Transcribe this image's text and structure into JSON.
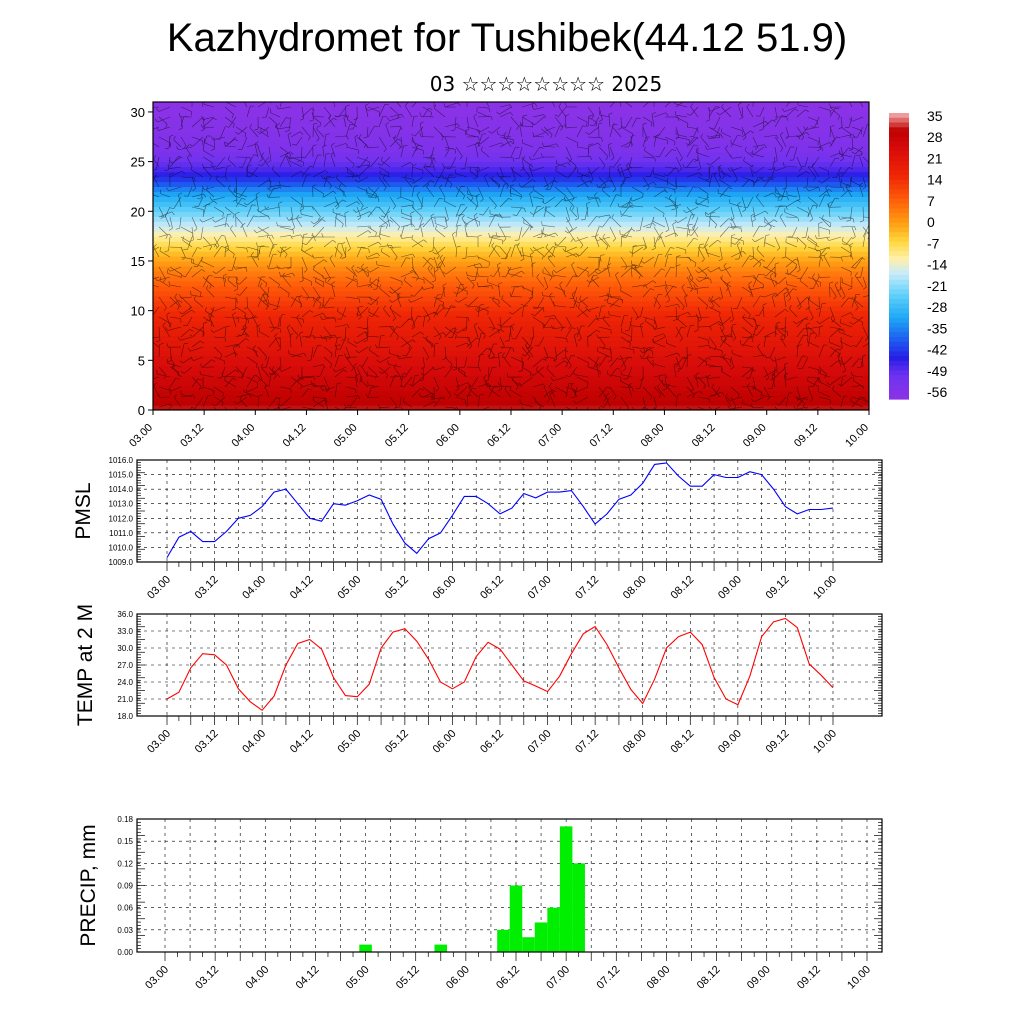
{
  "header": {
    "title": "Kazhydromet for Tushibek(44.12 51.9)",
    "subtitle": "03 ☆☆☆☆☆☆☆☆ 2025"
  },
  "colors": {
    "pmsl": "#0000ff",
    "temp": "#ff0000",
    "precip": "#00ee00",
    "frame": "#000000"
  },
  "chart_data": [
    {
      "type": "heatmap",
      "name": "vertical cross-section",
      "x_ticks": [
        "03.00",
        "03.12",
        "04.00",
        "04.12",
        "05.00",
        "05.12",
        "06.00",
        "06.12",
        "07.00",
        "07.12",
        "08.00",
        "08.12",
        "09.00",
        "09.12",
        "10.00"
      ],
      "y_ticks": [
        "0",
        "5",
        "10",
        "15",
        "20",
        "25",
        "30"
      ],
      "ylim": [
        0,
        31
      ],
      "colorbar_ticks": [
        "35",
        "28",
        "21",
        "14",
        "7",
        "0",
        "-7",
        "-14",
        "-21",
        "-28",
        "-35",
        "-42",
        "-49",
        "-56"
      ],
      "colorbar_range": [
        -60,
        38
      ],
      "profile_levels": [
        0,
        3,
        6,
        9,
        12,
        14,
        16,
        18,
        20,
        22,
        23,
        24,
        25,
        26,
        28,
        31
      ],
      "profile_values": [
        33,
        28,
        23,
        18,
        10,
        4,
        -4,
        -14,
        -24,
        -34,
        -42,
        -48,
        -52,
        -56,
        -58,
        -60
      ]
    },
    {
      "type": "line",
      "ylabel": "PMSL",
      "x_ticks": [
        "03.00",
        "03.12",
        "04.00",
        "04.12",
        "05.00",
        "05.12",
        "06.00",
        "06.12",
        "07.00",
        "07.12",
        "08.00",
        "08.12",
        "09.00",
        "09.12",
        "10.00"
      ],
      "y_ticks": [
        "1009.0",
        "1010.0",
        "1011.0",
        "1012.0",
        "1013.0",
        "1014.0",
        "1015.0",
        "1016.0"
      ],
      "ylim": [
        1009,
        1016
      ],
      "step_hours": 3,
      "values": [
        1009.3,
        1010.7,
        1011.1,
        1010.4,
        1010.4,
        1011.1,
        1012.0,
        1012.2,
        1012.8,
        1013.8,
        1014.0,
        1013.0,
        1012.0,
        1011.8,
        1013.0,
        1012.9,
        1013.2,
        1013.6,
        1013.3,
        1011.6,
        1010.3,
        1009.6,
        1010.6,
        1011.0,
        1012.2,
        1013.5,
        1013.5,
        1013.0,
        1012.3,
        1012.7,
        1013.7,
        1013.4,
        1013.8,
        1013.8,
        1013.9,
        1012.8,
        1011.6,
        1012.3,
        1013.3,
        1013.6,
        1014.4,
        1015.7,
        1015.8,
        1014.9,
        1014.2,
        1014.2,
        1015.0,
        1014.8,
        1014.8,
        1015.2,
        1015.0,
        1014.0,
        1012.8,
        1012.3,
        1012.6,
        1012.6,
        1012.7
      ]
    },
    {
      "type": "line",
      "ylabel": "TEMP at 2 M",
      "x_ticks": [
        "03.00",
        "03.12",
        "04.00",
        "04.12",
        "05.00",
        "05.12",
        "06.00",
        "06.12",
        "07.00",
        "07.12",
        "08.00",
        "08.12",
        "09.00",
        "09.12",
        "10.00"
      ],
      "y_ticks": [
        "18.0",
        "21.0",
        "24.0",
        "27.0",
        "30.0",
        "33.0",
        "36.0"
      ],
      "ylim": [
        18,
        36
      ],
      "step_hours": 3,
      "values": [
        21.0,
        22.2,
        26.5,
        29.0,
        28.8,
        27.0,
        22.8,
        20.5,
        19.0,
        21.5,
        27.0,
        30.8,
        31.5,
        29.8,
        24.8,
        21.6,
        21.4,
        23.6,
        30.0,
        32.8,
        33.4,
        31.2,
        28.0,
        24.0,
        22.8,
        24.0,
        28.5,
        31.0,
        29.8,
        27.0,
        24.2,
        23.3,
        22.3,
        25.0,
        29.0,
        32.5,
        33.8,
        30.6,
        26.5,
        22.7,
        20.2,
        24.5,
        30.0,
        32.0,
        32.8,
        30.6,
        24.8,
        21.0,
        20.0,
        25.0,
        32.0,
        34.6,
        35.2,
        33.6,
        27.2,
        25.2,
        23.0
      ]
    },
    {
      "type": "bar",
      "ylabel": "PRECIP, mm",
      "x_ticks": [
        "03.00",
        "03.12",
        "04.00",
        "04.12",
        "05.00",
        "05.12",
        "06.00",
        "06.12",
        "07.00",
        "07.12",
        "08.00",
        "08.12",
        "09.00",
        "09.12",
        "10.00"
      ],
      "y_ticks": [
        "0.00",
        "0.03",
        "0.06",
        "0.09",
        "0.12",
        "0.15",
        "0.18"
      ],
      "ylim": [
        0,
        0.18
      ],
      "step_hours": 3,
      "values": [
        0,
        0,
        0,
        0,
        0,
        0,
        0,
        0,
        0,
        0,
        0,
        0,
        0,
        0,
        0,
        0,
        0.01,
        0,
        0,
        0,
        0,
        0,
        0.01,
        0,
        0,
        0,
        0,
        0.03,
        0.09,
        0.02,
        0.04,
        0.06,
        0.17,
        0.12,
        0,
        0,
        0,
        0,
        0,
        0,
        0,
        0,
        0,
        0,
        0,
        0,
        0,
        0,
        0,
        0,
        0,
        0,
        0,
        0,
        0,
        0
      ]
    }
  ]
}
